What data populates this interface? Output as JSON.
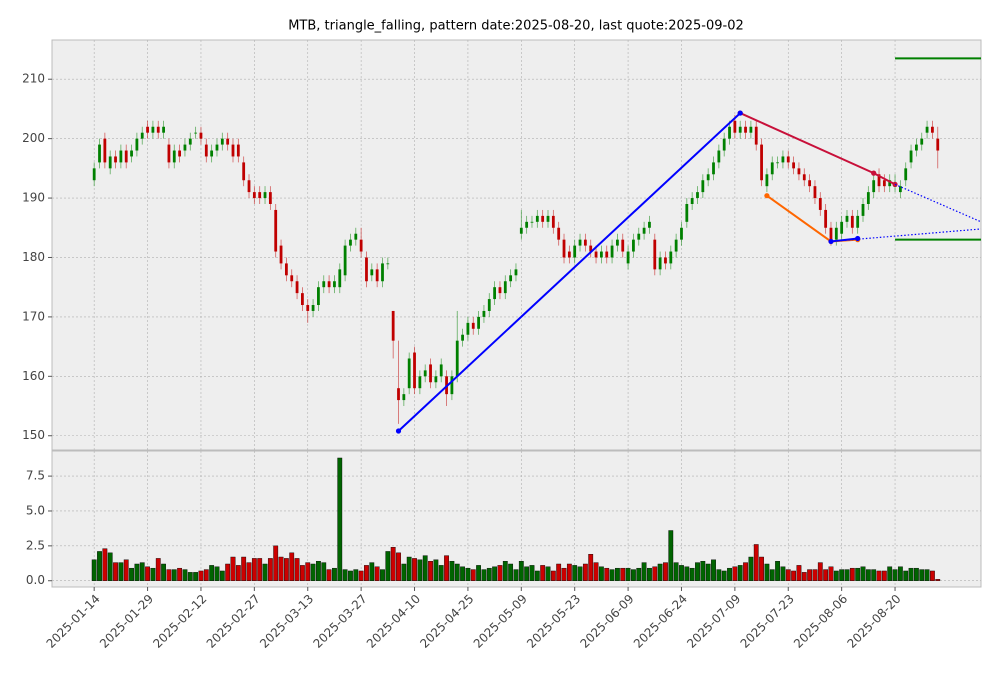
{
  "chart_data": {
    "type": "candlestick",
    "title": "MTB, triangle_falling, pattern date:2025-08-20, last quote:2025-09-02",
    "up_color": "#008000",
    "down_color": "#c00000",
    "grid": true,
    "xlim": [
      -7.9,
      166.1
    ],
    "xticks": [
      {
        "value": 0,
        "label": "2025-01-14"
      },
      {
        "value": 10,
        "label": "2025-01-29"
      },
      {
        "value": 20,
        "label": "2025-02-12"
      },
      {
        "value": 30,
        "label": "2025-02-27"
      },
      {
        "value": 40,
        "label": "2025-03-13"
      },
      {
        "value": 50,
        "label": "2025-03-27"
      },
      {
        "value": 60,
        "label": "2025-04-10"
      },
      {
        "value": 70,
        "label": "2025-04-25"
      },
      {
        "value": 80,
        "label": "2025-05-09"
      },
      {
        "value": 90,
        "label": "2025-05-23"
      },
      {
        "value": 100,
        "label": "2025-06-09"
      },
      {
        "value": 110,
        "label": "2025-06-24"
      },
      {
        "value": 120,
        "label": "2025-07-09"
      },
      {
        "value": 130,
        "label": "2025-07-23"
      },
      {
        "value": 140,
        "label": "2025-08-06"
      },
      {
        "value": 150,
        "label": "2025-08-20"
      }
    ],
    "ylim": [
      147.6,
      216.6
    ],
    "yticks": [
      150,
      160,
      170,
      180,
      190,
      200,
      210
    ],
    "volume_ylim": [
      -0.45,
      9.3
    ],
    "volume_yticks": [
      {
        "value": 0,
        "label": "0.0"
      },
      2.5,
      {
        "value": 5,
        "label": "5.0"
      },
      7.5
    ],
    "open": [
      193,
      196,
      200,
      195,
      197,
      196,
      198,
      197,
      198,
      200,
      202,
      201,
      202,
      201,
      199,
      196,
      198,
      198,
      199,
      201,
      201,
      199,
      197,
      198,
      199,
      200,
      199,
      199,
      196,
      193,
      191,
      191,
      190,
      191,
      188,
      182,
      179,
      177,
      176,
      174,
      172,
      171,
      172,
      175,
      176,
      175,
      175,
      177,
      182,
      183,
      183,
      180,
      177,
      178,
      176,
      179,
      171,
      158,
      156,
      158,
      164,
      158,
      160,
      162,
      159,
      160,
      160,
      157,
      160,
      166,
      167,
      169,
      168,
      170,
      171,
      173,
      175,
      174,
      176,
      177,
      184,
      185,
      186,
      186,
      187,
      186,
      187,
      185,
      183,
      181,
      180,
      182,
      183,
      182,
      181,
      180,
      181,
      180,
      182,
      183,
      179,
      181,
      183,
      184,
      185,
      183,
      178,
      180,
      179,
      181,
      183,
      186,
      189,
      190,
      191,
      193,
      194,
      196,
      198,
      200,
      203,
      201,
      202,
      201,
      202,
      199,
      192,
      194,
      196,
      196,
      197,
      196,
      195,
      194,
      193,
      192,
      190,
      188,
      185,
      183,
      184,
      186,
      187,
      185,
      187,
      189,
      191,
      194,
      193,
      192,
      192,
      191,
      193,
      196,
      198,
      199,
      201,
      202,
      200
    ],
    "high": [
      196,
      200,
      201,
      198,
      198,
      199,
      199,
      199,
      201,
      202,
      203,
      203,
      203,
      203,
      200,
      199,
      199,
      200,
      201,
      202,
      202,
      200,
      199,
      200,
      201,
      201,
      200,
      200,
      197,
      194,
      192,
      192,
      192,
      192,
      189,
      183,
      180,
      178,
      177,
      175,
      173,
      173,
      176,
      177,
      177,
      177,
      179,
      183,
      184,
      185,
      185,
      181,
      179,
      179,
      180,
      180,
      171,
      166,
      158,
      164,
      165,
      161,
      162,
      163,
      161,
      163,
      161,
      161,
      171,
      168,
      170,
      170,
      171,
      172,
      174,
      176,
      176,
      177,
      178,
      179,
      188,
      187,
      187,
      188,
      188,
      188,
      188,
      186,
      184,
      182,
      183,
      184,
      184,
      183,
      182,
      182,
      182,
      183,
      184,
      184,
      182,
      184,
      185,
      186,
      187,
      184,
      181,
      181,
      182,
      184,
      186,
      190,
      191,
      192,
      194,
      195,
      197,
      199,
      201,
      203,
      204,
      203,
      203,
      203,
      203,
      200,
      195,
      197,
      197,
      198,
      198,
      197,
      196,
      195,
      194,
      193,
      191,
      189,
      186,
      186,
      187,
      188,
      188,
      188,
      190,
      192,
      194,
      195,
      194,
      194,
      194,
      193,
      196,
      199,
      200,
      201,
      203,
      203,
      202
    ],
    "low": [
      192,
      195,
      195,
      194,
      195,
      195,
      195,
      196,
      197,
      199,
      200,
      200,
      200,
      200,
      195,
      195,
      196,
      197,
      198,
      200,
      199,
      196,
      196,
      197,
      198,
      198,
      196,
      196,
      192,
      190,
      189,
      189,
      189,
      188,
      180,
      178,
      176,
      175,
      173,
      171,
      169,
      170,
      171,
      174,
      174,
      174,
      174,
      176,
      181,
      182,
      180,
      175,
      176,
      175,
      175,
      178,
      163,
      152,
      155,
      157,
      157,
      157,
      159,
      158,
      158,
      159,
      155,
      156,
      159,
      165,
      166,
      167,
      167,
      169,
      170,
      172,
      173,
      173,
      175,
      176,
      183,
      184,
      185,
      185,
      185,
      185,
      184,
      182,
      179,
      179,
      179,
      181,
      181,
      180,
      179,
      179,
      179,
      179,
      181,
      180,
      178,
      180,
      182,
      183,
      184,
      177,
      177,
      178,
      178,
      180,
      182,
      185,
      188,
      189,
      190,
      192,
      193,
      195,
      197,
      199,
      200,
      200,
      200,
      200,
      198,
      192,
      191,
      193,
      195,
      195,
      195,
      194,
      193,
      192,
      191,
      189,
      187,
      184,
      182,
      182,
      183,
      185,
      184,
      184,
      186,
      188,
      190,
      191,
      191,
      191,
      191,
      190,
      192,
      195,
      197,
      198,
      200,
      200,
      195
    ],
    "close": [
      195,
      199,
      196,
      197,
      196,
      198,
      196,
      198,
      200,
      201,
      201,
      202,
      201,
      202,
      196,
      198,
      197,
      199,
      200,
      201,
      200,
      197,
      198,
      199,
      200,
      199,
      197,
      197,
      193,
      191,
      190,
      190,
      191,
      189,
      181,
      179,
      177,
      176,
      174,
      172,
      171,
      172,
      175,
      176,
      175,
      176,
      178,
      182,
      183,
      184,
      181,
      176,
      178,
      176,
      179,
      179,
      166,
      156,
      157,
      163,
      158,
      160,
      161,
      159,
      160,
      162,
      157,
      160,
      166,
      167,
      169,
      168,
      170,
      171,
      173,
      175,
      174,
      176,
      177,
      178,
      185,
      186,
      186,
      187,
      186,
      187,
      185,
      183,
      180,
      180,
      182,
      183,
      182,
      181,
      180,
      181,
      180,
      182,
      183,
      181,
      181,
      183,
      184,
      185,
      186,
      178,
      180,
      179,
      181,
      183,
      185,
      189,
      190,
      191,
      193,
      194,
      196,
      198,
      200,
      202,
      201,
      202,
      201,
      202,
      199,
      193,
      194,
      196,
      196,
      197,
      196,
      195,
      194,
      193,
      192,
      190,
      188,
      185,
      183,
      185,
      186,
      187,
      185,
      187,
      189,
      191,
      193,
      192,
      192,
      193,
      192,
      192,
      195,
      198,
      199,
      200,
      202,
      201,
      198
    ],
    "volume": [
      1.5,
      2.1,
      2.3,
      2.0,
      1.3,
      1.3,
      1.5,
      0.9,
      1.2,
      1.3,
      1.0,
      0.9,
      1.6,
      1.2,
      0.8,
      0.8,
      0.9,
      0.8,
      0.6,
      0.6,
      0.7,
      0.8,
      1.1,
      1.0,
      0.7,
      1.2,
      1.7,
      1.1,
      1.7,
      1.3,
      1.6,
      1.6,
      1.2,
      1.6,
      2.5,
      1.7,
      1.6,
      2.0,
      1.6,
      1.1,
      1.3,
      1.2,
      1.4,
      1.3,
      0.8,
      0.9,
      8.8,
      0.8,
      0.7,
      0.8,
      0.7,
      1.1,
      1.3,
      1.0,
      0.8,
      2.1,
      2.4,
      2.0,
      1.2,
      1.7,
      1.6,
      1.5,
      1.8,
      1.4,
      1.5,
      1.1,
      1.8,
      1.4,
      1.2,
      1.0,
      0.9,
      0.8,
      1.1,
      0.8,
      0.9,
      1.0,
      1.1,
      1.4,
      1.2,
      0.8,
      1.4,
      1.0,
      1.1,
      0.7,
      1.1,
      1.0,
      0.7,
      1.2,
      0.9,
      1.2,
      1.1,
      1.0,
      1.2,
      1.9,
      1.3,
      1.0,
      0.9,
      0.8,
      0.9,
      0.9,
      0.9,
      0.8,
      0.9,
      1.3,
      0.9,
      1.0,
      1.2,
      1.3,
      3.6,
      1.3,
      1.1,
      1.0,
      0.9,
      1.3,
      1.4,
      1.2,
      1.5,
      0.8,
      0.7,
      0.9,
      1.0,
      1.1,
      1.3,
      1.7,
      2.6,
      1.7,
      1.2,
      0.8,
      1.4,
      1.0,
      0.8,
      0.7,
      1.1,
      0.6,
      0.8,
      0.8,
      1.3,
      0.8,
      1.0,
      0.7,
      0.8,
      0.8,
      0.9,
      0.9,
      1.0,
      0.8,
      0.8,
      0.7,
      0.7,
      1.0,
      0.8,
      1.0,
      0.7,
      0.9,
      0.9,
      0.8,
      0.8,
      0.7,
      0.1
    ],
    "lines": [
      {
        "color": "#c8103a",
        "x": [
          121,
          146,
          150
        ],
        "y": [
          204.3,
          194.2,
          192.3
        ],
        "markers": true
      },
      {
        "color": "#0000ff",
        "x": [
          57,
          121
        ],
        "y": [
          150.8,
          204.3
        ],
        "markers": true
      },
      {
        "color": "#0000ff",
        "x": [
          150,
          166.1
        ],
        "y": [
          192.3,
          186.0
        ],
        "style": "dotted"
      },
      {
        "color": "#ff6600",
        "x": [
          126,
          138,
          143
        ],
        "y": [
          190.4,
          182.7,
          183.0
        ],
        "markers": true
      },
      {
        "color": "#0000ff",
        "x": [
          138,
          143
        ],
        "y": [
          182.7,
          183.2
        ],
        "markers": true
      },
      {
        "color": "#0000ff",
        "x": [
          138,
          166.1
        ],
        "y": [
          182.7,
          184.8
        ],
        "style": "dotted"
      },
      {
        "color": "#008000",
        "x": [
          150,
          166.1
        ],
        "y": [
          213.5,
          213.5
        ]
      },
      {
        "color": "#008000",
        "x": [
          150,
          166.1
        ],
        "y": [
          183.0,
          183.0
        ]
      }
    ]
  }
}
